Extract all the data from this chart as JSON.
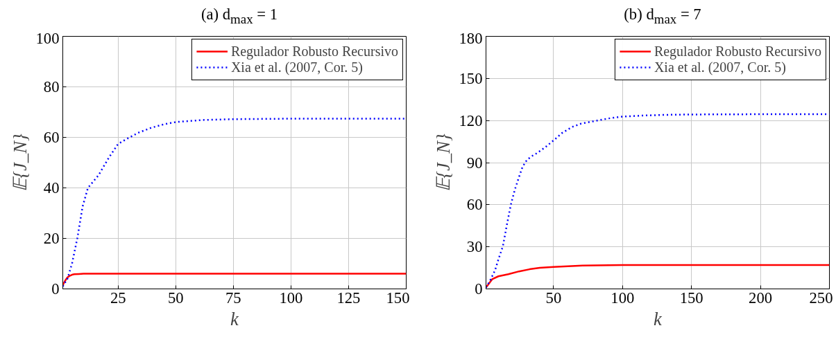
{
  "chart_data": [
    {
      "type": "line",
      "title": "(a) d$_{max}$ = 1",
      "xlabel": "k",
      "ylabel": "𝔼{J_N}",
      "xlim": [
        1,
        150
      ],
      "xticks": [
        25,
        50,
        75,
        100,
        125,
        150
      ],
      "ylim": [
        0,
        100
      ],
      "yticks": [
        0,
        20,
        40,
        60,
        80,
        100
      ],
      "grid": true,
      "legend": "top right",
      "series": [
        {
          "name": "Regulador Robusto Recursivo",
          "color": "#ff0000",
          "line_style": "solid",
          "x": [
            1,
            2,
            3,
            4,
            5,
            6,
            8,
            10,
            15,
            20,
            50,
            100,
            150
          ],
          "values": [
            1.5,
            3.2,
            4.5,
            5.2,
            5.6,
            5.8,
            5.9,
            6,
            6,
            6,
            6,
            6,
            6
          ]
        },
        {
          "name": "Xia et al. (2007, Cor. 5)",
          "color": "#0000ff",
          "line_style": "dotted",
          "x": [
            1,
            3,
            5,
            7.3,
            9.6,
            11.9,
            16.5,
            21,
            25,
            29,
            33.7,
            39.4,
            45,
            50.3,
            62.3,
            75,
            100,
            125,
            150
          ],
          "values": [
            1,
            4,
            10,
            20,
            32.6,
            40,
            45,
            52,
            57.4,
            59.5,
            61.8,
            63.8,
            65.2,
            66.1,
            66.9,
            67.2,
            67.4,
            67.4,
            67.4
          ]
        }
      ]
    },
    {
      "type": "line",
      "title": "(b) d$_{max}$ = 7",
      "xlabel": "k",
      "ylabel": "𝔼{J_N}",
      "xlim": [
        1,
        250
      ],
      "xticks": [
        50,
        100,
        150,
        200,
        250
      ],
      "ylim": [
        0,
        180
      ],
      "yticks": [
        0,
        30,
        60,
        90,
        120,
        150,
        180
      ],
      "grid": true,
      "legend": "top right",
      "series": [
        {
          "name": "Regulador Robusto Recursivo",
          "color": "#ff0000",
          "line_style": "solid",
          "x": [
            1,
            5.6,
            10,
            17.2,
            25,
            32.6,
            40,
            50,
            71,
            100,
            150,
            200,
            250
          ],
          "values": [
            1,
            7,
            9,
            10.5,
            12.5,
            14,
            15,
            15.7,
            16.6,
            17,
            17,
            17,
            17
          ]
        },
        {
          "name": "Xia et al. (2007, Cor. 5)",
          "color": "#0000ff",
          "line_style": "dotted",
          "x": [
            1,
            4,
            7.5,
            10,
            13.3,
            16,
            19.1,
            22,
            24.9,
            27.5,
            30.6,
            34,
            38.4,
            44,
            50,
            56,
            63.4,
            70,
            80.7,
            90,
            100,
            114,
            128.7,
            150,
            200,
            250
          ],
          "values": [
            1,
            6,
            13.1,
            21,
            30.6,
            45,
            60.3,
            71,
            79.6,
            87,
            91.8,
            94.5,
            97,
            101,
            105.8,
            111,
            115.4,
            117.8,
            119.8,
            121.5,
            122.8,
            123.5,
            124,
            124.3,
            124.5,
            124.5
          ]
        }
      ]
    }
  ]
}
